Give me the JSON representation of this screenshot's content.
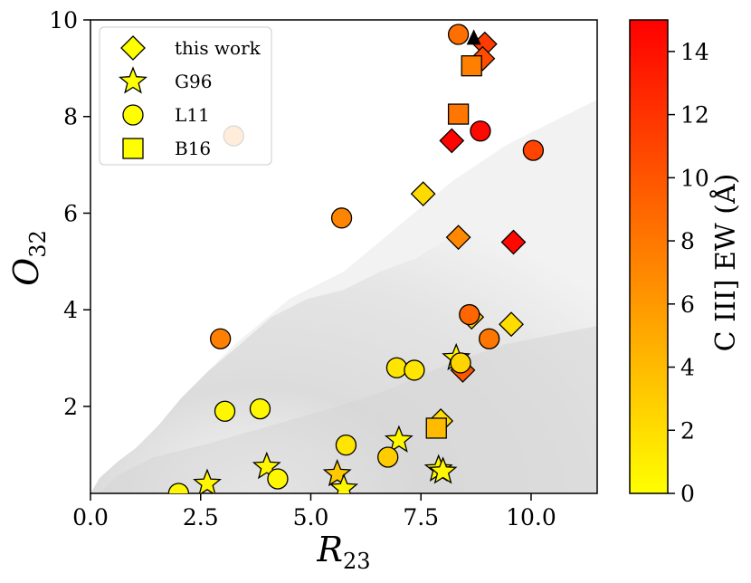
{
  "chart_data": {
    "type": "scatter",
    "xlabel": "R",
    "xlabel_sub": "23",
    "ylabel": "O",
    "ylabel_sub": "32",
    "xlim": [
      0,
      11.5
    ],
    "ylim": [
      0.2,
      10
    ],
    "xticks": [
      0.0,
      2.5,
      5.0,
      7.5,
      10.0
    ],
    "xtick_labels": [
      "0.0",
      "2.5",
      "5.0",
      "7.5",
      "10.0"
    ],
    "yticks": [
      2,
      4,
      6,
      8,
      10
    ],
    "ytick_labels": [
      "2",
      "4",
      "6",
      "8",
      "10"
    ],
    "grid": false,
    "legend_position": "top-left",
    "background": "grey 2D density histogram of comparison galaxies",
    "colorbar": {
      "label": "C III] EW (Å)",
      "range": [
        0,
        15
      ],
      "ticks": [
        0,
        2,
        4,
        6,
        8,
        10,
        12,
        14
      ],
      "tick_labels": [
        "0",
        "2",
        "4",
        "6",
        "8",
        "10",
        "12",
        "14"
      ],
      "colormap": "autumn_r",
      "color_low": "#ffff00",
      "color_high": "#ff0000"
    },
    "series": [
      {
        "name": "this work",
        "marker": "diamond",
        "points": [
          {
            "x": 8.95,
            "y": 9.5,
            "ew": 11.5
          },
          {
            "x": 8.9,
            "y": 9.2,
            "ew": 10.5
          },
          {
            "x": 9.6,
            "y": 5.4,
            "ew": 14.5
          },
          {
            "x": 8.2,
            "y": 7.5,
            "ew": 14.8
          },
          {
            "x": 7.55,
            "y": 6.4,
            "ew": 2.2
          },
          {
            "x": 8.35,
            "y": 5.5,
            "ew": 7.0
          },
          {
            "x": 8.65,
            "y": 3.85,
            "ew": 3.0
          },
          {
            "x": 9.55,
            "y": 3.7,
            "ew": 2.0
          },
          {
            "x": 8.45,
            "y": 2.75,
            "ew": 10.0
          },
          {
            "x": 7.95,
            "y": 1.7,
            "ew": 2.0
          }
        ]
      },
      {
        "name": "G96",
        "marker": "star",
        "points": [
          {
            "x": 2.65,
            "y": 0.4,
            "ew": 0.5
          },
          {
            "x": 4.0,
            "y": 0.75,
            "ew": 0.5
          },
          {
            "x": 5.6,
            "y": 0.6,
            "ew": 3.2
          },
          {
            "x": 5.75,
            "y": 0.3,
            "ew": 0.5
          },
          {
            "x": 7.0,
            "y": 1.3,
            "ew": 0.5
          },
          {
            "x": 7.9,
            "y": 0.7,
            "ew": 0.5
          },
          {
            "x": 8.0,
            "y": 0.65,
            "ew": 0.5
          },
          {
            "x": 8.3,
            "y": 3.0,
            "ew": 0.5
          }
        ]
      },
      {
        "name": "L11",
        "marker": "circle",
        "points": [
          {
            "x": 8.35,
            "y": 9.7,
            "ew": 8.5
          },
          {
            "x": 8.85,
            "y": 7.7,
            "ew": 14.5
          },
          {
            "x": 10.05,
            "y": 7.3,
            "ew": 11.0
          },
          {
            "x": 3.25,
            "y": 7.6,
            "ew": 7.0
          },
          {
            "x": 5.7,
            "y": 5.9,
            "ew": 7.2
          },
          {
            "x": 2.95,
            "y": 3.4,
            "ew": 7.5
          },
          {
            "x": 8.6,
            "y": 3.9,
            "ew": 9.0
          },
          {
            "x": 9.05,
            "y": 3.4,
            "ew": 8.0
          },
          {
            "x": 8.4,
            "y": 2.9,
            "ew": 2.5
          },
          {
            "x": 6.95,
            "y": 2.8,
            "ew": 1.5
          },
          {
            "x": 7.35,
            "y": 2.75,
            "ew": 1.5
          },
          {
            "x": 3.05,
            "y": 1.9,
            "ew": 0.5
          },
          {
            "x": 3.85,
            "y": 1.95,
            "ew": 0.5
          },
          {
            "x": 5.8,
            "y": 1.2,
            "ew": 1.5
          },
          {
            "x": 6.75,
            "y": 0.95,
            "ew": 3.0
          },
          {
            "x": 4.25,
            "y": 0.5,
            "ew": 0.5
          },
          {
            "x": 2.0,
            "y": 0.2,
            "ew": 0.5
          }
        ]
      },
      {
        "name": "B16",
        "marker": "square",
        "points": [
          {
            "x": 8.65,
            "y": 9.05,
            "ew": 7.5
          },
          {
            "x": 8.35,
            "y": 8.05,
            "ew": 8.0
          },
          {
            "x": 7.85,
            "y": 1.55,
            "ew": 4.0
          }
        ]
      }
    ],
    "upper_limit_marker": {
      "shape": "triangle-up",
      "x": 8.7,
      "y": 9.6,
      "color": "#000000"
    }
  }
}
